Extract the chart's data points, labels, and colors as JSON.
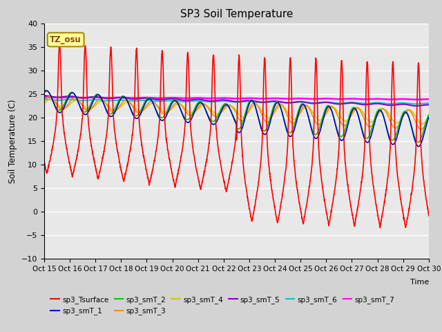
{
  "title": "SP3 Soil Temperature",
  "ylabel": "Soil Temperature (C)",
  "xlabel": "Time",
  "ylim": [
    -10,
    40
  ],
  "xlim": [
    0,
    15
  ],
  "xtick_labels": [
    "Oct 15",
    "Oct 16",
    "Oct 17",
    "Oct 18",
    "Oct 19",
    "Oct 20",
    "Oct 21",
    "Oct 22",
    "Oct 23",
    "Oct 24",
    "Oct 25",
    "Oct 26",
    "Oct 27",
    "Oct 28",
    "Oct 29",
    "Oct 30"
  ],
  "annotation_text": "TZ_osu",
  "annotation_color": "#8B4513",
  "annotation_bg": "#FFFF99",
  "series_colors": {
    "sp3_Tsurface": "#FF0000",
    "sp3_smT_1": "#0000CC",
    "sp3_smT_2": "#00CC00",
    "sp3_smT_3": "#FF8800",
    "sp3_smT_4": "#CCCC00",
    "sp3_smT_5": "#8800CC",
    "sp3_smT_6": "#00CCCC",
    "sp3_smT_7": "#FF00FF"
  },
  "bg_color": "#D3D3D3",
  "plot_bg_color": "#E8E8E8",
  "grid_color": "#FFFFFF",
  "figsize": [
    6.4,
    4.8
  ],
  "dpi": 100
}
